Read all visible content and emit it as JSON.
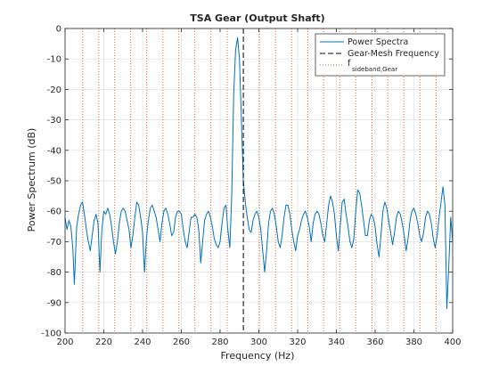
{
  "chart_data": {
    "type": "line",
    "title": "TSA Gear (Output Shaft)",
    "xlabel": "Frequency (Hz)",
    "ylabel": "Power Spectrum (dB)",
    "xlim": [
      200,
      400
    ],
    "ylim": [
      -100,
      0
    ],
    "xticks": [
      200,
      220,
      240,
      260,
      280,
      300,
      320,
      340,
      360,
      380,
      400
    ],
    "yticks": [
      0,
      -10,
      -20,
      -30,
      -40,
      -50,
      -60,
      -70,
      -80,
      -90,
      -100
    ],
    "grid": true,
    "legend_position": "top-right",
    "legend": {
      "power": "Power Spectra",
      "mesh": "Gear-Mesh Frequency",
      "sideband_main": "f",
      "sideband_sub": "sideband,Gear"
    },
    "gear_mesh_frequency": 292,
    "sideband_frequencies": [
      209.1,
      217.4,
      225.6,
      233.9,
      242.2,
      250.5,
      258.7,
      267.0,
      275.3,
      283.7,
      300.3,
      308.6,
      316.9,
      325.2,
      333.4,
      341.7,
      350.0,
      358.3,
      366.5,
      374.8,
      383.1,
      391.4
    ],
    "colors": {
      "series": "#0072bd",
      "mesh": "#000000",
      "sideband": "#d95319",
      "grid": "#dedede"
    },
    "series": [
      {
        "name": "Power Spectra",
        "x": [
          200,
          201,
          202,
          203,
          204,
          204.8,
          206,
          207,
          208,
          209,
          210,
          211,
          212,
          213,
          214,
          215,
          216,
          217,
          218,
          219,
          220,
          221,
          222,
          223,
          224,
          225,
          226,
          227,
          228,
          229,
          230,
          231,
          232,
          233,
          234,
          235,
          236,
          237,
          238,
          239,
          240,
          241,
          242,
          243,
          244,
          245,
          246,
          247,
          248,
          249,
          250,
          251,
          252,
          253,
          254,
          255,
          256,
          257,
          258,
          259,
          260,
          261,
          262,
          263,
          264,
          265,
          266,
          267,
          268,
          269,
          270,
          271,
          272,
          273,
          274,
          275,
          276,
          277,
          278,
          279,
          280,
          281,
          282,
          283,
          284,
          285,
          286,
          287,
          288,
          289,
          290,
          291,
          292,
          293,
          294,
          295,
          296,
          297,
          298,
          299,
          300,
          301,
          302,
          303,
          304,
          305,
          306,
          307,
          308,
          309,
          310,
          311,
          312,
          313,
          314,
          315,
          316,
          317,
          318,
          319,
          320,
          321,
          322,
          323,
          324,
          325,
          326,
          327,
          328,
          329,
          330,
          331,
          332,
          333,
          334,
          335,
          336,
          337,
          338,
          339,
          340,
          341,
          342,
          343,
          344,
          345,
          346,
          347,
          348,
          349,
          350,
          351,
          352,
          353,
          354,
          355,
          356,
          357,
          358,
          359,
          360,
          361,
          362,
          363,
          364,
          365,
          366,
          367,
          368,
          369,
          370,
          371,
          372,
          373,
          374,
          375,
          376,
          377,
          378,
          379,
          380,
          381,
          382,
          383,
          384,
          385,
          386,
          387,
          388,
          389,
          390,
          391,
          392,
          393,
          394,
          395,
          396,
          397,
          398,
          399,
          400
        ],
        "y": [
          -62,
          -66,
          -63,
          -65,
          -72,
          -84,
          -65,
          -61,
          -58,
          -57,
          -61,
          -66,
          -70,
          -73,
          -68,
          -63,
          -61,
          -64,
          -80,
          -66,
          -60,
          -61,
          -59,
          -61,
          -65,
          -70,
          -74,
          -70,
          -64,
          -60,
          -59,
          -60,
          -63,
          -66,
          -72,
          -68,
          -62,
          -57,
          -58,
          -62,
          -67,
          -80,
          -69,
          -63,
          -59,
          -58,
          -60,
          -62,
          -66,
          -70,
          -64,
          -60,
          -59,
          -61,
          -64,
          -68,
          -67,
          -62,
          -60,
          -60,
          -61,
          -66,
          -70,
          -72,
          -67,
          -62,
          -62,
          -61,
          -62,
          -66,
          -77,
          -70,
          -63,
          -61,
          -60,
          -62,
          -65,
          -69,
          -71,
          -72,
          -70,
          -64,
          -59,
          -58,
          -66,
          -72,
          -55,
          -22,
          -7,
          -3,
          -10,
          -30,
          -50,
          -57,
          -62,
          -66,
          -67,
          -63,
          -61,
          -60,
          -62,
          -66,
          -73,
          -80,
          -73,
          -64,
          -60,
          -59,
          -61,
          -65,
          -70,
          -72,
          -68,
          -62,
          -58,
          -58,
          -61,
          -66,
          -70,
          -73,
          -68,
          -66,
          -63,
          -61,
          -60,
          -62,
          -65,
          -70,
          -64,
          -61,
          -60,
          -61,
          -64,
          -68,
          -70,
          -64,
          -58,
          -55,
          -57,
          -61,
          -68,
          -73,
          -65,
          -57,
          -56,
          -61,
          -65,
          -70,
          -72,
          -69,
          -60,
          -53,
          -54,
          -58,
          -63,
          -68,
          -68,
          -63,
          -61,
          -62,
          -65,
          -71,
          -75,
          -68,
          -60,
          -57,
          -59,
          -63,
          -67,
          -71,
          -67,
          -62,
          -60,
          -61,
          -64,
          -68,
          -73,
          -69,
          -63,
          -60,
          -59,
          -61,
          -64,
          -68,
          -70,
          -67,
          -62,
          -60,
          -61,
          -64,
          -69,
          -72,
          -68,
          -62,
          -57,
          -52,
          -58,
          -92,
          -78,
          -62,
          -70
        ]
      }
    ]
  }
}
